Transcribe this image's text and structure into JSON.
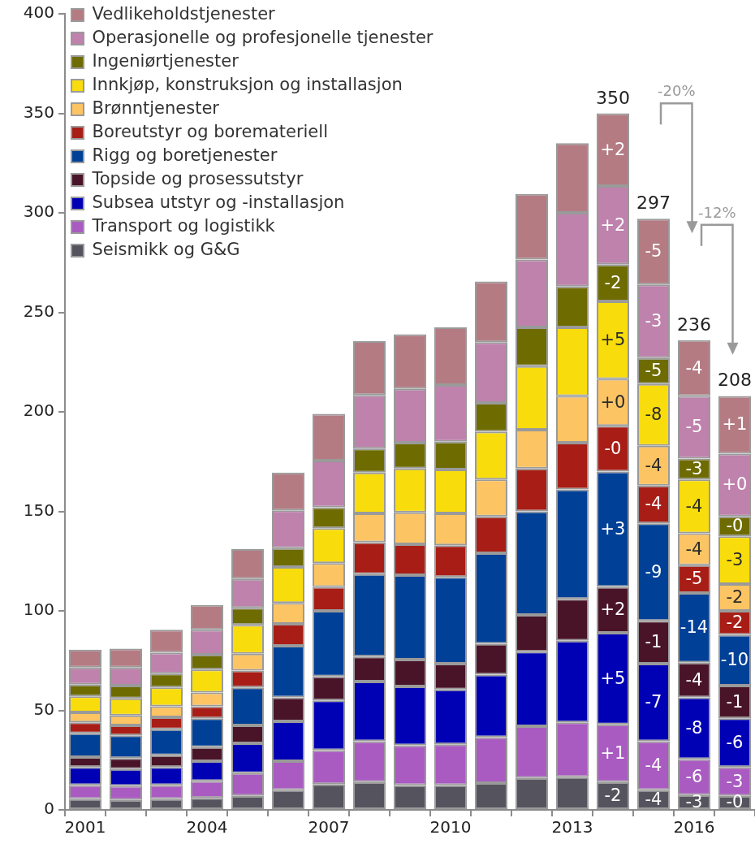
{
  "chart_data": {
    "type": "bar",
    "stacked": true,
    "categories": [
      "2001",
      null,
      null,
      "2004",
      null,
      null,
      "2007",
      null,
      null,
      "2010",
      null,
      null,
      "2013",
      null,
      null,
      "2016",
      null
    ],
    "series": [
      {
        "name": "Seismikk og G&G",
        "color": "#55545e",
        "values": [
          5.5,
          5,
          5.5,
          6,
          7,
          10,
          13,
          14,
          12.5,
          12.5,
          13.5,
          16,
          16.5,
          14,
          10,
          7.5,
          7
        ]
      },
      {
        "name": "Transport og logistikk",
        "color": "#a95bc1",
        "values": [
          7,
          7,
          7,
          8.5,
          11.5,
          14.5,
          17,
          20.5,
          20,
          20.5,
          23,
          26,
          27.5,
          29,
          24.5,
          18,
          14.5
        ]
      },
      {
        "name": "Subsea utstyr og -installasjon",
        "color": "#0000b4",
        "values": [
          9,
          8.5,
          9,
          10,
          15,
          20,
          25,
          30,
          29.5,
          27.5,
          31.5,
          37.5,
          41,
          46,
          39,
          31,
          24.5
        ]
      },
      {
        "name": "Topside og prosessutstyr",
        "color": "#4a1428",
        "values": [
          5,
          5.5,
          6,
          7,
          9,
          12,
          12,
          12.5,
          13.5,
          13,
          15.5,
          18.5,
          21,
          23,
          21.5,
          17.5,
          16.5
        ]
      },
      {
        "name": "Rigg og boretjenester",
        "color": "#004097",
        "values": [
          12,
          11.5,
          13,
          14.5,
          19,
          26,
          33,
          41.5,
          42.5,
          43.5,
          45.5,
          52,
          55,
          58,
          49,
          35,
          25.5
        ]
      },
      {
        "name": "Boreutstyr og boremateriell",
        "color": "#a81e16",
        "values": [
          5.5,
          5,
          6,
          6,
          8.5,
          11,
          12,
          16,
          15.5,
          16,
          18.5,
          21.5,
          23.5,
          23,
          19,
          14,
          12
        ]
      },
      {
        "name": "Brønntjenester",
        "color": "#fdc463",
        "values": [
          5,
          5,
          5.5,
          7,
          8.5,
          10.5,
          12,
          14.5,
          16,
          16,
          18.5,
          19.5,
          23.5,
          23.5,
          20,
          16,
          13.5
        ]
      },
      {
        "name": "Innkjøp, konstruksjon og installasjon",
        "color": "#f8dc0c",
        "values": [
          8,
          8.5,
          9.5,
          11.5,
          14.5,
          18,
          17.5,
          20.5,
          22,
          22,
          24,
          32,
          34.5,
          39,
          31,
          27,
          24
        ]
      },
      {
        "name": "Ingeniørtjenester",
        "color": "#6e6b00",
        "values": [
          6,
          6.5,
          7,
          7.5,
          8.5,
          9.5,
          10.5,
          12,
          13,
          14,
          14.5,
          19.5,
          20.5,
          18.5,
          13,
          10.5,
          10
        ]
      },
      {
        "name": "Operasjonelle og profesjonelle tjenester",
        "color": "#be82ac",
        "values": [
          8.5,
          9,
          10.5,
          12.5,
          14.5,
          19,
          23.5,
          27,
          27,
          28.5,
          30.5,
          34,
          37,
          39.5,
          37,
          31.5,
          31.5
        ]
      },
      {
        "name": "Vedlikeholdstjenester",
        "color": "#b47b83",
        "values": [
          9,
          9.5,
          11.5,
          12.5,
          15,
          19,
          23.5,
          27,
          27.5,
          29,
          30.5,
          33,
          35,
          36.5,
          33,
          28,
          29
        ]
      }
    ],
    "ylim": [
      0,
      400
    ],
    "yticks": [
      0,
      50,
      100,
      150,
      200,
      250,
      300,
      350,
      400
    ],
    "grid": false,
    "legend": "top left",
    "totals": [
      null,
      null,
      null,
      null,
      null,
      null,
      null,
      null,
      null,
      null,
      null,
      null,
      null,
      "350",
      "297",
      "236",
      "208"
    ],
    "annotations": [
      "-2",
      "+1",
      "+5",
      "+2",
      "+3",
      "-0",
      "+0",
      "+5",
      "-2",
      "+2",
      "+2",
      "-4",
      "-4",
      "-7",
      "-1",
      "-9",
      "-4",
      "-4",
      "-8",
      "-5",
      "-3",
      "-5",
      "-3",
      "-6",
      "-8",
      "-4",
      "-14",
      "-5",
      "-4",
      "-4",
      "-3",
      "-5",
      "-4",
      "-0",
      "-3",
      "-6",
      "-1",
      "-10",
      "-2",
      "-2",
      "-3",
      "-0",
      "+0",
      "+1",
      "-20%",
      "-12%"
    ]
  }
}
